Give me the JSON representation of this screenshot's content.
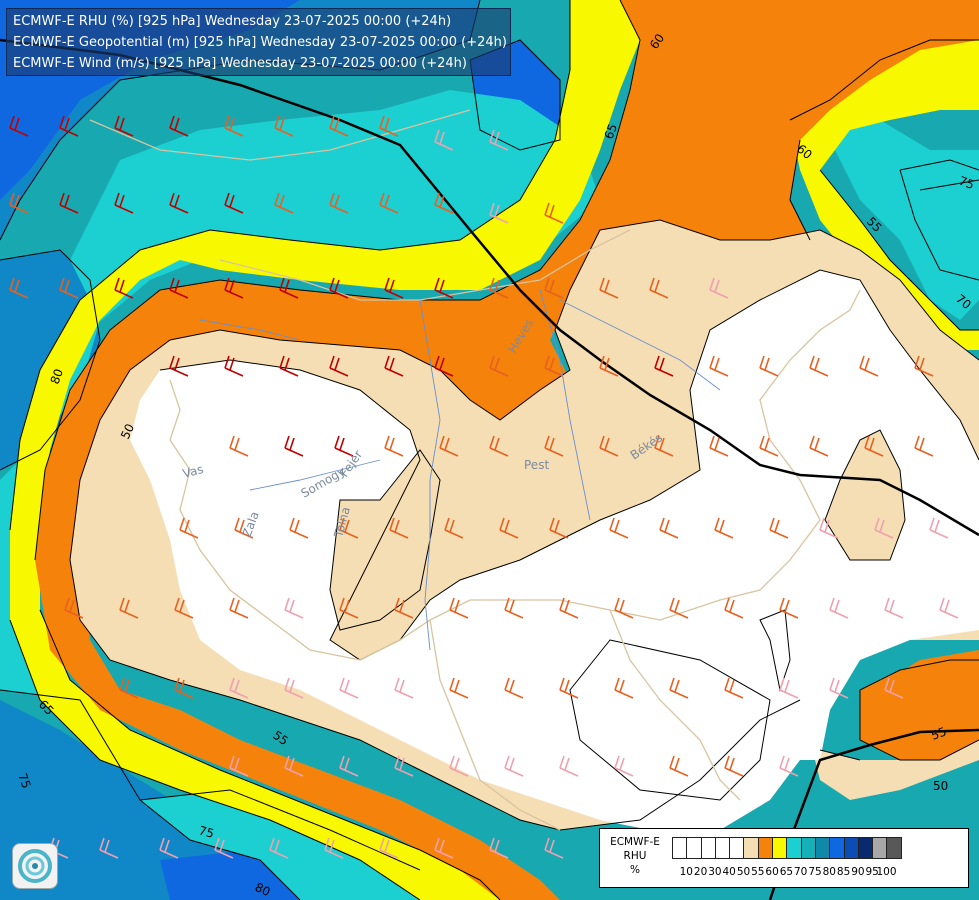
{
  "header": {
    "line1": "ECMWF-E RHU (%) [925 hPa] Wednesday 23-07-2025 00:00 (+24h)",
    "line2": "ECMWF-E Geopotential (m) [925 hPa] Wednesday 23-07-2025 00:00 (+24h)",
    "line3": "ECMWF-E Wind (m/s) [925 hPa] Wednesday 23-07-2025 00:00 (+24h)"
  },
  "legend": {
    "title_line1": "ECMWF-E",
    "title_line2": "RHU",
    "unit": "%",
    "ticks": [
      "10",
      "20",
      "30",
      "40",
      "50",
      "55",
      "60",
      "65",
      "70",
      "75",
      "80",
      "85",
      "90",
      "95",
      "100"
    ],
    "colors": [
      "#ffffff",
      "#ffffff",
      "#ffffff",
      "#ffffff",
      "#ffffff",
      "#f5deb3",
      "#f5820a",
      "#f8f800",
      "#1ccfd0",
      "#18b0b8",
      "#1088a8",
      "#0f68e0",
      "#0c4cb4",
      "#0a2a70",
      "#a8a8a8",
      "#585858"
    ]
  },
  "contour_labels": {
    "c50_left": "50",
    "c50_right": "50",
    "c55_bottom": "55",
    "c55_right": "55",
    "c55_right_upper": "55",
    "c60_top": "60",
    "c60_right": "60",
    "c65_top": "65",
    "c65_left": "65",
    "c75_left": "75",
    "c75_bottom": "75",
    "c75_right": "75",
    "c80_left": "80",
    "c80_bottom": "80",
    "c70_right": "70"
  },
  "region_labels": {
    "vas": "Vas",
    "zala": "Zala",
    "somogy": "Somogy",
    "fejer": "Fejér",
    "tolna": "Tolna",
    "pest": "Pest",
    "heves": "Heves",
    "bekes": "Békés"
  },
  "colors": {
    "rhu_50": "#ffffff",
    "rhu_55": "#f5deb3",
    "rhu_60": "#f5820a",
    "rhu_65": "#f8f800",
    "rhu_70": "#1ccfd0",
    "rhu_75": "#18a8b0",
    "rhu_80": "#1088c8",
    "rhu_85": "#0f68e0",
    "rhu_90": "#0a3a8a",
    "geopotential_line": "#000000",
    "border_line": "#d8c4a0",
    "river_line": "#6a8fd0"
  }
}
